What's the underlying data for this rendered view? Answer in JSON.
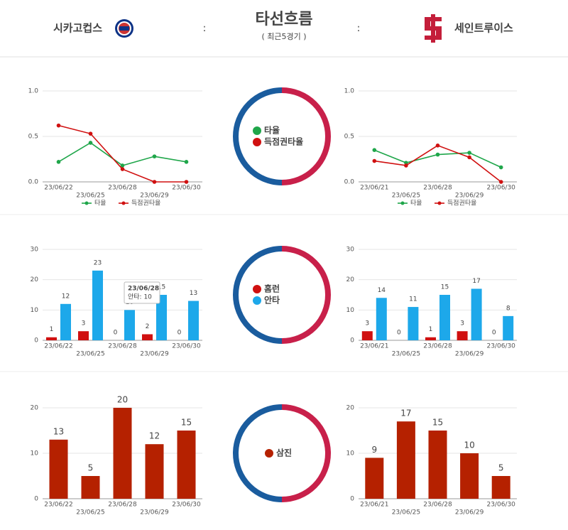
{
  "header": {
    "home_team": "시카고컵스",
    "title": "타선흐름",
    "subtitle": "( 최근5경기 )",
    "away_team": "세인트루이스",
    "separator": ":"
  },
  "chart_data": [
    {
      "type": "line",
      "categories": [
        "23/06/22",
        "23/06/25",
        "23/06/28",
        "23/06/29",
        "23/06/30"
      ],
      "series": [
        {
          "name": "타율",
          "color": "#1fa64a",
          "values": [
            0.22,
            0.43,
            0.18,
            0.28,
            0.22
          ]
        },
        {
          "name": "득점권타율",
          "color": "#d01010",
          "values": [
            0.62,
            0.53,
            0.14,
            0.0,
            0.0
          ]
        }
      ],
      "ylim": [
        0,
        1
      ],
      "yticks": [
        {
          "value": 0,
          "label": "0.0"
        },
        {
          "value": 0.5,
          "label": "0.5"
        },
        {
          "value": 1,
          "label": "1.0"
        }
      ],
      "grid": true,
      "legend": "bottom"
    },
    {
      "type": "line",
      "categories": [
        "23/06/21",
        "23/06/25",
        "23/06/28",
        "23/06/29",
        "23/06/30"
      ],
      "series": [
        {
          "name": "타율",
          "color": "#1fa64a",
          "values": [
            0.35,
            0.21,
            0.3,
            0.32,
            0.16
          ]
        },
        {
          "name": "득점권타율",
          "color": "#d01010",
          "values": [
            0.23,
            0.18,
            0.4,
            0.27,
            0.0
          ]
        }
      ],
      "ylim": [
        0,
        1
      ],
      "yticks": [
        {
          "value": 0,
          "label": "0.0"
        },
        {
          "value": 0.5,
          "label": "0.5"
        },
        {
          "value": 1,
          "label": "1.0"
        }
      ],
      "grid": true,
      "legend": "bottom"
    },
    {
      "type": "bar",
      "categories": [
        "23/06/22",
        "23/06/25",
        "23/06/28",
        "23/06/29",
        "23/06/30"
      ],
      "series": [
        {
          "name": "홈런",
          "color": "#d01010",
          "values": [
            1,
            3,
            0,
            2,
            0
          ]
        },
        {
          "name": "안타",
          "color": "#1da8ea",
          "values": [
            12,
            23,
            10,
            15,
            13
          ]
        }
      ],
      "ylim": [
        0,
        30
      ],
      "yticks": [
        0,
        10,
        20,
        30
      ],
      "grid": true,
      "tooltip": {
        "title": "23/06/28",
        "label": "안타: 10"
      }
    },
    {
      "type": "bar",
      "categories": [
        "23/06/21",
        "23/06/25",
        "23/06/28",
        "23/06/29",
        "23/06/30"
      ],
      "series": [
        {
          "name": "홈런",
          "color": "#d01010",
          "values": [
            3,
            0,
            1,
            3,
            0
          ]
        },
        {
          "name": "안타",
          "color": "#1da8ea",
          "values": [
            14,
            11,
            15,
            17,
            8
          ]
        }
      ],
      "ylim": [
        0,
        30
      ],
      "yticks": [
        0,
        10,
        20,
        30
      ],
      "grid": true
    },
    {
      "type": "bar",
      "categories": [
        "23/06/22",
        "23/06/25",
        "23/06/28",
        "23/06/29",
        "23/06/30"
      ],
      "series": [
        {
          "name": "삼진",
          "color": "#b52100",
          "values": [
            13,
            5,
            20,
            12,
            15
          ]
        }
      ],
      "ylim": [
        0,
        20
      ],
      "yticks": [
        0,
        10,
        20
      ],
      "grid": true
    },
    {
      "type": "bar",
      "categories": [
        "23/06/21",
        "23/06/25",
        "23/06/28",
        "23/06/29",
        "23/06/30"
      ],
      "series": [
        {
          "name": "삼진",
          "color": "#b52100",
          "values": [
            9,
            17,
            15,
            10,
            5
          ]
        }
      ],
      "ylim": [
        0,
        20
      ],
      "yticks": [
        0,
        10,
        20
      ],
      "grid": true
    }
  ]
}
